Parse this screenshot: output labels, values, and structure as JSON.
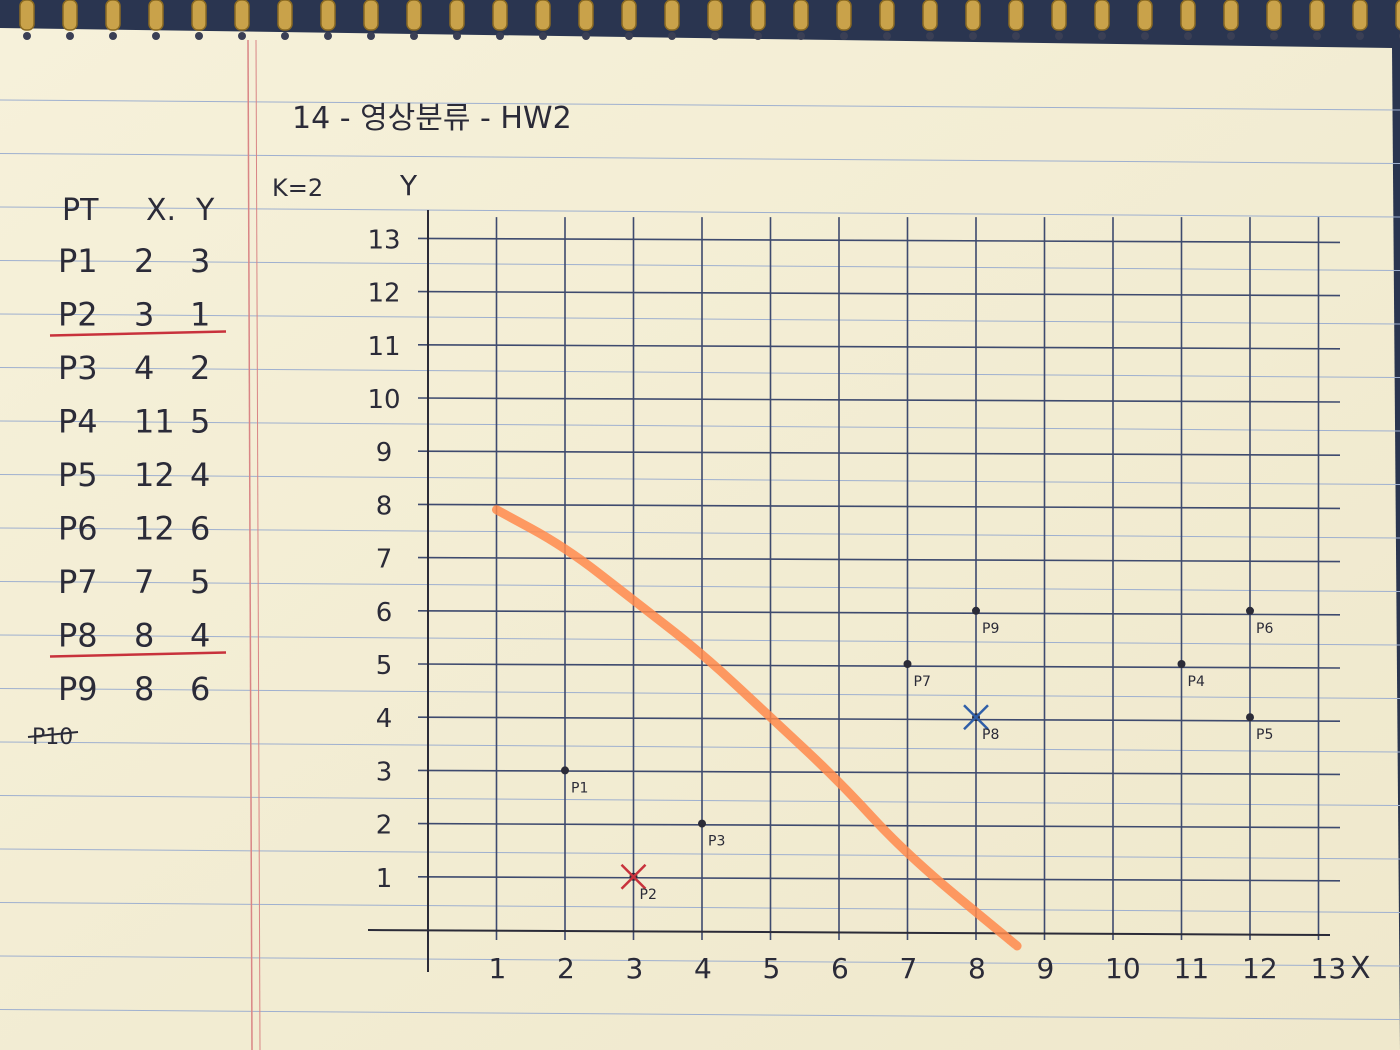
{
  "notebook": {
    "header": "14 - 영상분류 - HW2",
    "k_label": "K=2",
    "table": {
      "headers": [
        "PT",
        "X.",
        "Y"
      ],
      "rows": [
        {
          "pt": "P1",
          "x": "2",
          "y": "3",
          "underlined": false
        },
        {
          "pt": "P2",
          "x": "3",
          "y": "1",
          "underlined": true
        },
        {
          "pt": "P3",
          "x": "4",
          "y": "2",
          "underlined": false
        },
        {
          "pt": "P4",
          "x": "11",
          "y": "5",
          "underlined": false
        },
        {
          "pt": "P5",
          "x": "12",
          "y": "4",
          "underlined": false
        },
        {
          "pt": "P6",
          "x": "12",
          "y": "6",
          "underlined": false
        },
        {
          "pt": "P7",
          "x": "7",
          "y": "5",
          "underlined": false
        },
        {
          "pt": "P8",
          "x": "8",
          "y": "4",
          "underlined": true
        },
        {
          "pt": "P9",
          "x": "8",
          "y": "6",
          "underlined": false
        }
      ],
      "struck_label": "P10"
    }
  },
  "plot": {
    "x_axis_label": "X",
    "y_axis_label": "Y",
    "x_ticks": [
      "1",
      "2",
      "3",
      "4",
      "5",
      "6",
      "7",
      "8",
      "9",
      "10",
      "11",
      "12",
      "13"
    ],
    "y_ticks": [
      "1",
      "2",
      "3",
      "4",
      "5",
      "6",
      "7",
      "8",
      "9",
      "10",
      "11",
      "12",
      "13"
    ],
    "points": [
      {
        "label": "P1",
        "x": 2,
        "y": 3,
        "centroid": false
      },
      {
        "label": "P2",
        "x": 3,
        "y": 1,
        "centroid": true,
        "mark_color": "#c8323c"
      },
      {
        "label": "P3",
        "x": 4,
        "y": 2,
        "centroid": false
      },
      {
        "label": "P4",
        "x": 11,
        "y": 5,
        "centroid": false
      },
      {
        "label": "P5",
        "x": 12,
        "y": 4,
        "centroid": false
      },
      {
        "label": "P6",
        "x": 12,
        "y": 6,
        "centroid": false
      },
      {
        "label": "P7",
        "x": 7,
        "y": 5,
        "centroid": false
      },
      {
        "label": "P8",
        "x": 8,
        "y": 4,
        "centroid": true,
        "mark_color": "#2f5fa8"
      },
      {
        "label": "P9",
        "x": 8,
        "y": 6,
        "centroid": false
      }
    ],
    "boundary": {
      "color": "#ff8a4c",
      "points": [
        [
          1,
          7.9
        ],
        [
          2,
          7.2
        ],
        [
          3,
          6.2
        ],
        [
          4,
          5.2
        ],
        [
          5,
          4.0
        ],
        [
          6,
          2.8
        ],
        [
          7,
          1.4
        ],
        [
          8.6,
          -0.3
        ]
      ]
    }
  },
  "colors": {
    "paper": "#f4efd6",
    "rule": "#5a6f9c",
    "margin": "#d98585",
    "ink": "#2b2b38",
    "underline": "#c8323c"
  }
}
